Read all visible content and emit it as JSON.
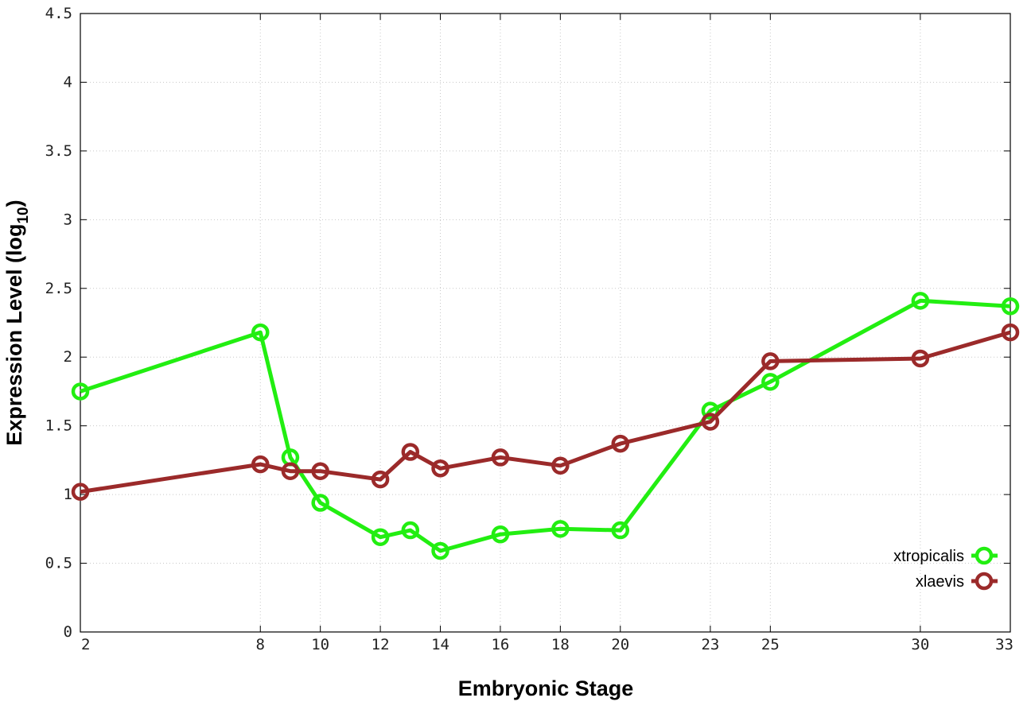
{
  "chart_data": {
    "type": "line",
    "xlabel": "Embryonic Stage",
    "ylabel_main": "Expression Level (log",
    "ylabel_sub": "10",
    "ylabel_close": ")",
    "ylim": [
      0,
      4.5
    ],
    "y_ticks": [
      "0",
      "0.5",
      "1",
      "1.5",
      "2",
      "2.5",
      "3",
      "3.5",
      "4",
      "4.5"
    ],
    "x_ticks": [
      "2",
      "8",
      "10",
      "12",
      "14",
      "16",
      "18",
      "20",
      "23",
      "25",
      "30",
      "33"
    ],
    "x": [
      2,
      8,
      9,
      10,
      12,
      13,
      14,
      16,
      18,
      20,
      23,
      25,
      30,
      33
    ],
    "grid": true,
    "legend_position": "bottom-right",
    "series": [
      {
        "name": "xtropicalis",
        "color": "#22ee11",
        "values": [
          1.75,
          2.18,
          1.27,
          0.94,
          0.69,
          0.74,
          0.59,
          0.71,
          0.75,
          0.74,
          1.61,
          1.82,
          2.41,
          2.37
        ]
      },
      {
        "name": "xlaevis",
        "color": "#9b2a2a",
        "values": [
          1.02,
          1.22,
          1.17,
          1.17,
          1.11,
          1.31,
          1.19,
          1.27,
          1.21,
          1.37,
          1.53,
          1.97,
          1.99,
          2.18
        ]
      }
    ]
  }
}
